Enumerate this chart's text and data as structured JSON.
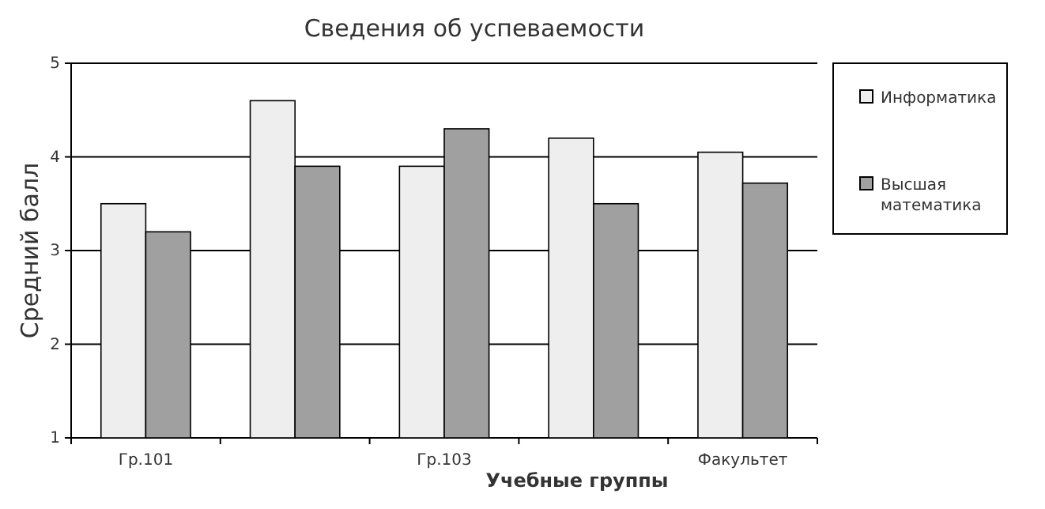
{
  "chart_data": {
    "type": "bar",
    "title": "Сведения об успеваемости",
    "xlabel": "Учебные группы",
    "ylabel": "Средний балл",
    "categories": [
      "Гр.101",
      null,
      "Гр.103",
      null,
      "Факультет"
    ],
    "series": [
      {
        "name": "Информатика",
        "color": "#eeeeee",
        "values": [
          3.5,
          4.6,
          3.9,
          4.2,
          4.05
        ]
      },
      {
        "name": "Высшая математика",
        "color": "#a0a0a0",
        "values": [
          3.2,
          3.9,
          4.3,
          3.5,
          3.72
        ]
      }
    ],
    "ylim": [
      1,
      5
    ],
    "yticks": [
      1,
      2,
      3,
      4,
      5
    ],
    "grid": "y",
    "legend": "right"
  }
}
